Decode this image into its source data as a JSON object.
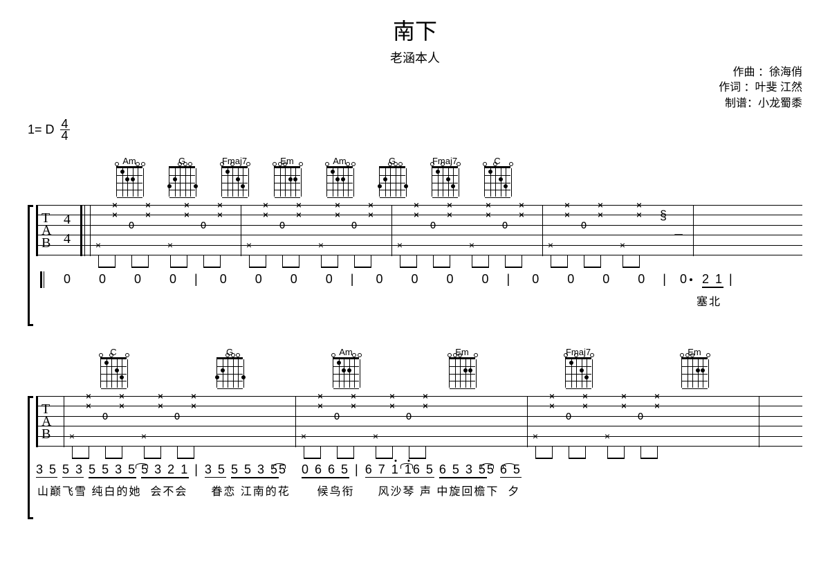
{
  "header": {
    "title": "南下",
    "subtitle": "老涵本人"
  },
  "credits": {
    "composer_label": "作曲 ：徐海俏",
    "lyricist_label": "作词 ：叶斐 江然",
    "notation_label": "制谱：小龙蜀黍"
  },
  "key_signature": {
    "key": "1= D",
    "time_num": "4",
    "time_den": "4"
  },
  "chord_names_row1": [
    "Am",
    "G",
    "Fmaj7",
    "Em",
    "Am",
    "G",
    "Fmaj7",
    "C"
  ],
  "chord_names_row2": [
    "C",
    "G",
    "Am",
    "Em",
    "Fmaj7",
    "Em"
  ],
  "chord_fingerings": {
    "Am": [
      [
        1,
        1
      ],
      [
        3,
        2
      ],
      [
        2,
        2
      ]
    ],
    "G": [
      [
        1,
        2
      ],
      [
        5,
        3
      ],
      [
        0,
        3
      ]
    ],
    "Fmaj7": [
      [
        1,
        1
      ],
      [
        3,
        2
      ],
      [
        4,
        3
      ]
    ],
    "Em": [
      [
        4,
        2
      ],
      [
        3,
        2
      ]
    ],
    "C": [
      [
        1,
        1
      ],
      [
        3,
        2
      ],
      [
        4,
        3
      ]
    ]
  },
  "tab_row1": {
    "time_sig_num": "4",
    "time_sig_den": "4",
    "measures": [
      {
        "chord_pair": [
          "Am",
          "G"
        ],
        "pattern": "xx0x"
      },
      {
        "chord_pair": [
          "Fmaj7",
          "Em"
        ],
        "pattern": "xx0x"
      },
      {
        "chord_pair": [
          "Am",
          "G"
        ],
        "pattern": "xx0x"
      },
      {
        "chord_pair": [
          "Fmaj7",
          "C"
        ],
        "pattern": "xxx_arp",
        "rest": "−"
      }
    ]
  },
  "tab_row2": {
    "measures": [
      {
        "chord": "C",
        "chord2": "G"
      },
      {
        "chord": "Am",
        "chord2": "Em"
      },
      {
        "chord": "Fmaj7",
        "chord2": "Em"
      }
    ]
  },
  "numbered_row1": {
    "measures": [
      "0  0  0  0",
      "0  0  0  0",
      "0  0  0  0",
      "0  0  0  0"
    ],
    "pickup": "0·",
    "pickup_notes": [
      "2",
      "1"
    ],
    "pickup_lyric": "塞北"
  },
  "numbered_row2": {
    "groups": [
      {
        "notes": "3 5  5 3  5 5 3 5  5 3 2 1",
        "lyric": "山巅飞雪 纯白的她  会不会"
      },
      {
        "notes": "3 5  5 5 3 5 5   0 6 6 5",
        "lyric": "眷恋 江南的花     候鸟衔"
      },
      {
        "notes": "6 7 1 1 6  5  6 5 3 5 5  6 5",
        "lyric": "风沙琴 声 中旋回檐下  夕"
      }
    ]
  }
}
